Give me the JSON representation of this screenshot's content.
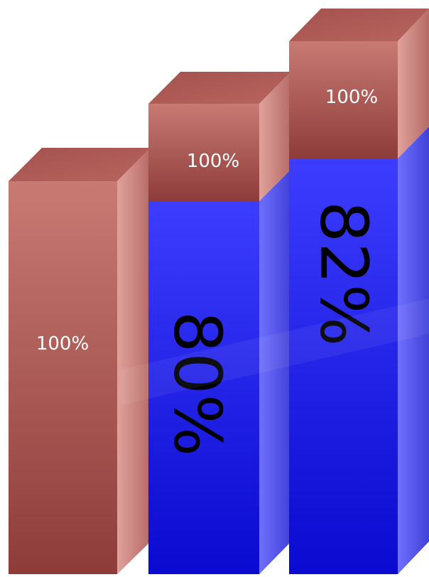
{
  "chart_data": {
    "type": "bar",
    "style": "3d-stacked-cylinder-boxes",
    "bars": [
      {
        "segments": [
          {
            "label": "100%",
            "color": "#b4605c"
          }
        ]
      },
      {
        "segments": [
          {
            "label": "80%",
            "color": "#2a2ae0",
            "label_rotation": 90
          },
          {
            "label": "100%",
            "color": "#b4605c"
          }
        ]
      },
      {
        "segments": [
          {
            "label": "82%",
            "color": "#2a2ae0",
            "label_rotation": 90
          },
          {
            "label": "100%",
            "color": "#b4605c"
          }
        ]
      }
    ],
    "colors": {
      "blue": "#2a2ae0",
      "red": "#b4605c"
    },
    "grid": false,
    "legend": "none"
  }
}
